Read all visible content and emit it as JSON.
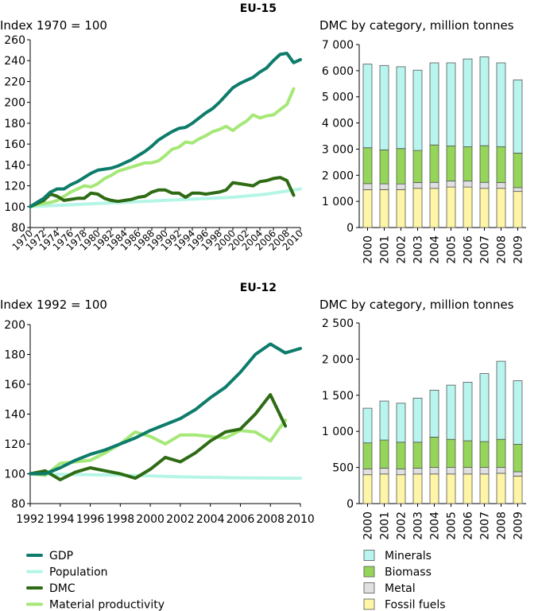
{
  "colors": {
    "gdp": "#0e7c6b",
    "population": "#b5f5e6",
    "dmc": "#2e6b14",
    "material_productivity": "#a6e878",
    "minerals": "#b9f5ef",
    "biomass": "#94d55a",
    "metal": "#e0e0e0",
    "fossil_fuels": "#fff5a6",
    "axis": "#000000"
  },
  "sections": {
    "eu15_region_label": "EU-15",
    "eu12_region_label": "EU-12"
  },
  "legend_lines": [
    {
      "label": "GDP",
      "color_key": "gdp"
    },
    {
      "label": "Population",
      "color_key": "population"
    },
    {
      "label": "DMC",
      "color_key": "dmc"
    },
    {
      "label": "Material productivity",
      "color_key": "material_productivity"
    }
  ],
  "legend_bars": [
    {
      "label": "Minerals",
      "color_key": "minerals"
    },
    {
      "label": "Biomass",
      "color_key": "biomass"
    },
    {
      "label": "Metal",
      "color_key": "metal"
    },
    {
      "label": "Fossil fuels",
      "color_key": "fossil_fuels"
    }
  ],
  "chart_data": [
    {
      "id": "eu15_index",
      "type": "line",
      "title": "Index 1970 = 100",
      "ylim": [
        80,
        260
      ],
      "yticks": [
        80,
        100,
        120,
        140,
        160,
        180,
        200,
        220,
        240,
        260
      ],
      "xlim": [
        1970,
        2010
      ],
      "xticks": [
        1970,
        1972,
        1974,
        1976,
        1978,
        1980,
        1982,
        1984,
        1986,
        1988,
        1990,
        1992,
        1994,
        1996,
        1998,
        2000,
        2002,
        2004,
        2006,
        2008,
        2010
      ],
      "x_rotated": true,
      "series": [
        {
          "name": "Population",
          "color_key": "population",
          "x": [
            1970,
            1975,
            1980,
            1985,
            1990,
            1995,
            2000,
            2005,
            2010
          ],
          "y": [
            100,
            101.5,
            103,
            104.5,
            106,
            107.5,
            109,
            112,
            117
          ]
        },
        {
          "name": "Material productivity",
          "color_key": "material_productivity",
          "x": [
            1970,
            1971,
            1972,
            1973,
            1974,
            1975,
            1976,
            1977,
            1978,
            1979,
            1980,
            1981,
            1982,
            1983,
            1984,
            1985,
            1986,
            1987,
            1988,
            1989,
            1990,
            1991,
            1992,
            1993,
            1994,
            1995,
            1996,
            1997,
            1998,
            1999,
            2000,
            2001,
            2002,
            2003,
            2004,
            2005,
            2006,
            2007,
            2008,
            2009
          ],
          "y": [
            100,
            102,
            103,
            104,
            106,
            110,
            114,
            117,
            120,
            119,
            122,
            127,
            130,
            134,
            136,
            138,
            140,
            142,
            142,
            144,
            149,
            155,
            157,
            162,
            161,
            165,
            168,
            172,
            174,
            177,
            173,
            178,
            182,
            188,
            185,
            187,
            188,
            193,
            198,
            213
          ]
        },
        {
          "name": "DMC",
          "color_key": "dmc",
          "x": [
            1970,
            1971,
            1972,
            1973,
            1974,
            1975,
            1976,
            1977,
            1978,
            1979,
            1980,
            1981,
            1982,
            1983,
            1984,
            1985,
            1986,
            1987,
            1988,
            1989,
            1990,
            1991,
            1992,
            1993,
            1994,
            1995,
            1996,
            1997,
            1998,
            1999,
            2000,
            2001,
            2002,
            2003,
            2004,
            2005,
            2006,
            2007,
            2008,
            2009
          ],
          "y": [
            100,
            103,
            106,
            112,
            110,
            106,
            107,
            108,
            108,
            113,
            112,
            108,
            106,
            105,
            106,
            107,
            109,
            110,
            114,
            116,
            116,
            113,
            113,
            109,
            113,
            113,
            112,
            113,
            114,
            116,
            123,
            122,
            121,
            120,
            124,
            125,
            127,
            128,
            125,
            111
          ]
        },
        {
          "name": "GDP",
          "color_key": "gdp",
          "x": [
            1970,
            1971,
            1972,
            1973,
            1974,
            1975,
            1976,
            1977,
            1978,
            1979,
            1980,
            1981,
            1982,
            1983,
            1984,
            1985,
            1986,
            1987,
            1988,
            1989,
            1990,
            1991,
            1992,
            1993,
            1994,
            1995,
            1996,
            1997,
            1998,
            1999,
            2000,
            2001,
            2002,
            2003,
            2004,
            2005,
            2006,
            2007,
            2008,
            2009,
            2010
          ],
          "y": [
            100,
            104,
            108,
            114,
            117,
            117,
            121,
            124,
            128,
            132,
            135,
            136,
            137,
            139,
            142,
            145,
            149,
            153,
            158,
            164,
            168,
            172,
            175,
            176,
            180,
            185,
            190,
            194,
            200,
            207,
            214,
            218,
            221,
            224,
            229,
            233,
            240,
            246,
            247,
            238,
            241
          ]
        }
      ]
    },
    {
      "id": "eu15_dmc",
      "type": "bar",
      "stacked": true,
      "title": "DMC by category, million tonnes",
      "ylim": [
        0,
        7000
      ],
      "yticks": [
        0,
        1000,
        2000,
        3000,
        4000,
        5000,
        6000,
        7000
      ],
      "ytick_labels": [
        "0",
        "1 000",
        "2 000",
        "3 000",
        "4 000",
        "5 000",
        "6 000",
        "7 000"
      ],
      "categories": [
        "2000",
        "2001",
        "2002",
        "2003",
        "2004",
        "2005",
        "2006",
        "2007",
        "2008",
        "2009"
      ],
      "series": [
        {
          "name": "Fossil fuels",
          "color_key": "fossil_fuels",
          "values": [
            1450,
            1450,
            1450,
            1500,
            1500,
            1550,
            1550,
            1500,
            1500,
            1380
          ]
        },
        {
          "name": "Metal",
          "color_key": "metal",
          "values": [
            230,
            220,
            220,
            220,
            230,
            230,
            230,
            230,
            220,
            150
          ]
        },
        {
          "name": "Biomass",
          "color_key": "biomass",
          "values": [
            1370,
            1300,
            1350,
            1230,
            1430,
            1340,
            1310,
            1400,
            1370,
            1320
          ]
        },
        {
          "name": "Minerals",
          "color_key": "minerals",
          "values": [
            3200,
            3230,
            3130,
            3070,
            3140,
            3180,
            3360,
            3400,
            3210,
            2800
          ]
        }
      ]
    },
    {
      "id": "eu12_index",
      "type": "line",
      "title": "Index 1992 = 100",
      "ylim": [
        80,
        200
      ],
      "yticks": [
        80,
        100,
        120,
        140,
        160,
        180,
        200
      ],
      "xlim": [
        1992,
        2010
      ],
      "xticks": [
        1992,
        1994,
        1996,
        1998,
        2000,
        2002,
        2004,
        2006,
        2008,
        2010
      ],
      "x_rotated": false,
      "series": [
        {
          "name": "Population",
          "color_key": "population",
          "x": [
            1992,
            1994,
            1996,
            1998,
            2000,
            2002,
            2004,
            2006,
            2008,
            2010
          ],
          "y": [
            100,
            99.6,
            99.3,
            99.1,
            98.6,
            97.9,
            97.6,
            97.3,
            97.1,
            97.0
          ]
        },
        {
          "name": "Material productivity",
          "color_key": "material_productivity",
          "x": [
            1992,
            1993,
            1994,
            1995,
            1996,
            1997,
            1998,
            1999,
            2000,
            2001,
            2002,
            2003,
            2004,
            2005,
            2006,
            2007,
            2008,
            2009
          ],
          "y": [
            100,
            99,
            107,
            108,
            109,
            114,
            120,
            128,
            125,
            120,
            126,
            126,
            125,
            124,
            129,
            128,
            122,
            136
          ]
        },
        {
          "name": "DMC",
          "color_key": "dmc",
          "x": [
            1992,
            1993,
            1994,
            1995,
            1996,
            1997,
            1998,
            1999,
            2000,
            2001,
            2002,
            2003,
            2004,
            2005,
            2006,
            2007,
            2008,
            2009
          ],
          "y": [
            100,
            102,
            96,
            101,
            104,
            102,
            100,
            97,
            103,
            111,
            108,
            114,
            122,
            128,
            130,
            140,
            153,
            132
          ]
        },
        {
          "name": "GDP",
          "color_key": "gdp",
          "x": [
            1992,
            1993,
            1994,
            1995,
            1996,
            1997,
            1998,
            1999,
            2000,
            2001,
            2002,
            2003,
            2004,
            2005,
            2006,
            2007,
            2008,
            2009,
            2010
          ],
          "y": [
            100,
            100,
            104,
            109,
            113,
            116,
            120,
            124,
            129,
            133,
            137,
            143,
            151,
            158,
            168,
            180,
            187,
            181,
            184
          ]
        }
      ]
    },
    {
      "id": "eu12_dmc",
      "type": "bar",
      "stacked": true,
      "title": "DMC by category, million tonnes",
      "ylim": [
        0,
        2500
      ],
      "yticks": [
        0,
        500,
        1000,
        1500,
        2000,
        2500
      ],
      "ytick_labels": [
        "0",
        "500",
        "1 000",
        "1 500",
        "2 000",
        "2 500"
      ],
      "categories": [
        "2000",
        "2001",
        "2002",
        "2003",
        "2004",
        "2005",
        "2006",
        "2007",
        "2008",
        "2009"
      ],
      "series": [
        {
          "name": "Fossil fuels",
          "color_key": "fossil_fuels",
          "values": [
            400,
            410,
            400,
            410,
            410,
            410,
            410,
            410,
            420,
            380
          ]
        },
        {
          "name": "Metal",
          "color_key": "metal",
          "values": [
            80,
            80,
            80,
            80,
            90,
            90,
            90,
            90,
            80,
            60
          ]
        },
        {
          "name": "Biomass",
          "color_key": "biomass",
          "values": [
            360,
            390,
            370,
            360,
            420,
            390,
            370,
            360,
            390,
            380
          ]
        },
        {
          "name": "Minerals",
          "color_key": "minerals",
          "values": [
            480,
            540,
            540,
            610,
            650,
            750,
            810,
            940,
            1080,
            880
          ]
        }
      ]
    }
  ]
}
